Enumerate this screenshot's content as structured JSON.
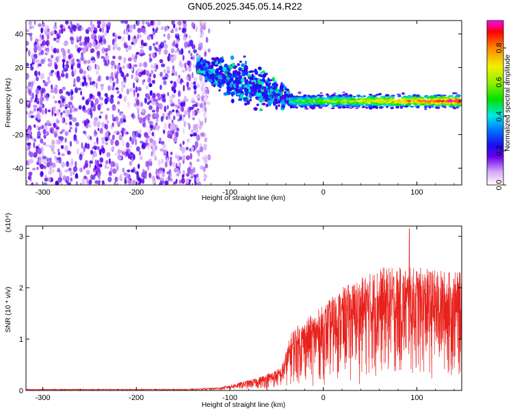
{
  "chart_data": [
    {
      "type": "heatmap",
      "title": "GN05.2025.345.05.14.R22",
      "xlabel": "Height of straight line (km)",
      "ylabel": "Frequency (Hz)",
      "xlim": [
        -318,
        148
      ],
      "ylim": [
        -50,
        48
      ],
      "x_ticks": [
        -300,
        -200,
        -100,
        0,
        100
      ],
      "y_ticks": [
        -40,
        -20,
        0,
        20,
        40
      ],
      "colorbar": {
        "label": "Normalized spectral amplitude",
        "range": [
          0,
          0.96
        ],
        "ticks": [
          0.0,
          0.2,
          0.4,
          0.6,
          0.8
        ]
      },
      "features": {
        "noise_region_x": [
          -318,
          -130
        ],
        "diagonal_band": {
          "x": [
            -135,
            -30
          ],
          "freq_start": 20,
          "freq_end": 0
        },
        "steady_line": {
          "x": [
            -35,
            148
          ],
          "freq": 0,
          "halfwidth_hz": 4
        }
      }
    },
    {
      "type": "line",
      "xlabel": "Height of straight line (km)",
      "ylabel": "SNR (10 * v/v)",
      "y_multiplier": "(x10⁴)",
      "xlim": [
        -318,
        148
      ],
      "ylim": [
        0,
        3.2
      ],
      "x_ticks": [
        -300,
        -200,
        -100,
        0,
        100
      ],
      "y_ticks": [
        0,
        1,
        2,
        3
      ],
      "line_color": "#e8211c",
      "envelope": [
        {
          "x": -318,
          "y": 0.02
        },
        {
          "x": -150,
          "y": 0.02
        },
        {
          "x": -110,
          "y": 0.06
        },
        {
          "x": -70,
          "y": 0.25
        },
        {
          "x": -45,
          "y": 0.45
        },
        {
          "x": -33,
          "y": 1.2
        },
        {
          "x": -10,
          "y": 1.5
        },
        {
          "x": 20,
          "y": 2.0
        },
        {
          "x": 60,
          "y": 2.4
        },
        {
          "x": 100,
          "y": 2.4
        },
        {
          "x": 148,
          "y": 2.3
        }
      ],
      "max_value": 3.15,
      "max_at_x": 92
    }
  ]
}
